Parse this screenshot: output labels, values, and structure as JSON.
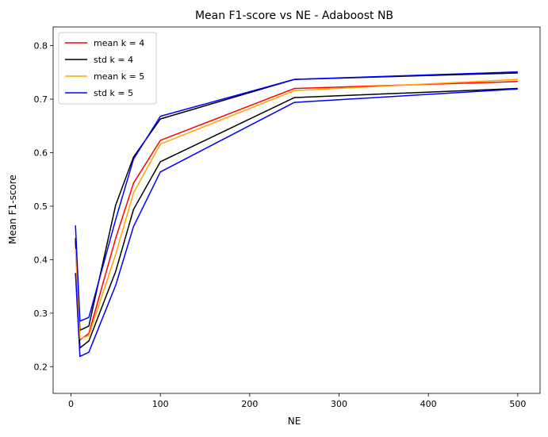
{
  "chart_data": {
    "type": "line",
    "title": "Mean F1-score vs NE - Adaboost NB",
    "xlabel": "NE",
    "ylabel": "Mean F1-score",
    "xlim": [
      -20,
      525
    ],
    "ylim": [
      0.15,
      0.835
    ],
    "xticks": [
      0,
      100,
      200,
      300,
      400,
      500
    ],
    "yticks": [
      0.2,
      0.3,
      0.4,
      0.5,
      0.6,
      0.7,
      0.8
    ],
    "grid": false,
    "legend_position": "top-left",
    "x": [
      5,
      10,
      20,
      50,
      70,
      100,
      250,
      500
    ],
    "series": [
      {
        "name": "mean k = 4",
        "color": "#ff0000",
        "values": [
          0.44,
          0.25,
          0.262,
          0.44,
          0.543,
          0.623,
          0.72,
          0.733
        ]
      },
      {
        "name": "std k = 4 (upper)",
        "color": "#000000",
        "values": [
          0.44,
          0.268,
          0.276,
          0.502,
          0.592,
          0.663,
          0.737,
          0.749
        ]
      },
      {
        "name": "std k = 4 (lower)",
        "color": "#000000",
        "values": [
          0.44,
          0.235,
          0.248,
          0.378,
          0.494,
          0.583,
          0.703,
          0.72
        ]
      },
      {
        "name": "mean k = 5",
        "color": "#ffa500",
        "values": [
          0.42,
          0.252,
          0.258,
          0.41,
          0.525,
          0.616,
          0.716,
          0.737
        ]
      },
      {
        "name": "std k = 5 (upper)",
        "color": "#0000ff",
        "values": [
          0.464,
          0.285,
          0.292,
          0.475,
          0.588,
          0.668,
          0.737,
          0.751
        ]
      },
      {
        "name": "std k = 5 (lower)",
        "color": "#0000ff",
        "values": [
          0.375,
          0.219,
          0.227,
          0.352,
          0.462,
          0.564,
          0.694,
          0.719
        ]
      }
    ],
    "legend": [
      {
        "label": "mean k = 4",
        "color": "#ff0000"
      },
      {
        "label": "std k = 4",
        "color": "#000000"
      },
      {
        "label": "mean k = 5",
        "color": "#ffa500"
      },
      {
        "label": "std k = 5",
        "color": "#0000ff"
      }
    ]
  }
}
